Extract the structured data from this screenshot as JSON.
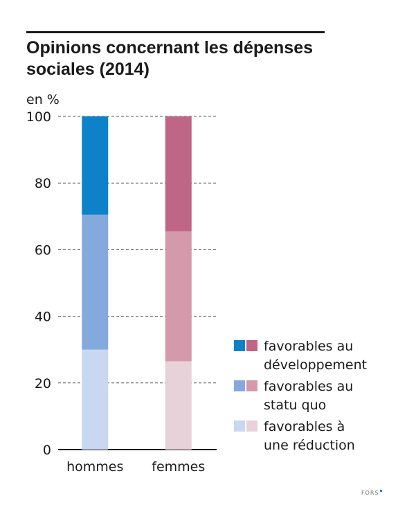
{
  "chart_data": {
    "type": "bar",
    "stacked": true,
    "title": "Opinions concernant les dépenses sociales (2014)",
    "ylabel": "en %",
    "ylim": [
      0,
      100
    ],
    "yticks": [
      0,
      20,
      40,
      60,
      80,
      100
    ],
    "grid": true,
    "legend_position": "right",
    "categories": [
      "hommes",
      "femmes"
    ],
    "series": [
      {
        "name": "favorables à une réduction",
        "values": [
          30,
          26.5
        ],
        "colors": [
          "#c9d8f1",
          "#e8d2da"
        ]
      },
      {
        "name": "favorables au statu quo",
        "values": [
          40.5,
          39
        ],
        "colors": [
          "#84aadd",
          "#d49aab"
        ]
      },
      {
        "name": "favorables au développement",
        "values": [
          29.5,
          34.5
        ],
        "colors": [
          "#0d82c8",
          "#bf6585"
        ]
      }
    ],
    "legend": [
      {
        "label": "favorables au développement",
        "colors": [
          "#0d82c8",
          "#bf6585"
        ]
      },
      {
        "label": "favorables au statu quo",
        "colors": [
          "#84aadd",
          "#d49aab"
        ]
      },
      {
        "label": "favorables à une réduction",
        "colors": [
          "#c9d8f1",
          "#e8d2da"
        ]
      }
    ]
  },
  "logo": {
    "text": "FORS"
  }
}
